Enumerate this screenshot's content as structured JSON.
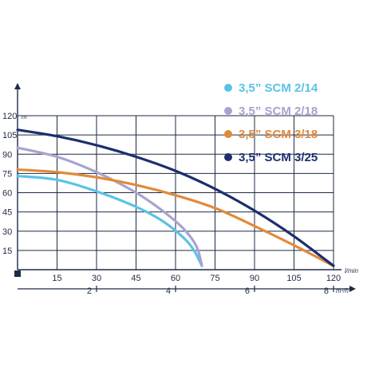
{
  "chart_data": {
    "type": "line",
    "x": {
      "min": 0,
      "max": 120,
      "ticks": [
        15,
        30,
        45,
        60,
        75,
        90,
        105,
        120
      ],
      "unit": "l/min"
    },
    "x2": {
      "min": 0,
      "max": 8,
      "ticks": [
        2,
        4,
        6,
        8
      ],
      "unit": "m³/h"
    },
    "y": {
      "min": 0,
      "max": 120,
      "ticks": [
        15,
        30,
        45,
        60,
        75,
        90,
        105,
        120
      ],
      "unit": "m"
    },
    "grid": true,
    "legend_position": "top-right",
    "series": [
      {
        "name": "3,5” SCM 2/14",
        "color": "#5bc2e7",
        "points": [
          [
            0,
            73
          ],
          [
            15,
            70
          ],
          [
            30,
            61
          ],
          [
            45,
            49
          ],
          [
            55,
            38
          ],
          [
            63,
            25
          ],
          [
            67,
            15
          ],
          [
            70,
            3
          ]
        ]
      },
      {
        "name": "3,5” SCM 2/18",
        "color": "#a8a3cf",
        "points": [
          [
            0,
            95
          ],
          [
            15,
            88
          ],
          [
            30,
            76
          ],
          [
            45,
            60
          ],
          [
            55,
            46
          ],
          [
            63,
            32
          ],
          [
            68,
            18
          ],
          [
            70,
            3
          ]
        ]
      },
      {
        "name": "3,5” SCM 3/18",
        "color": "#e08a3c",
        "points": [
          [
            0,
            78
          ],
          [
            15,
            76
          ],
          [
            30,
            72
          ],
          [
            45,
            66
          ],
          [
            60,
            58
          ],
          [
            75,
            48
          ],
          [
            90,
            34
          ],
          [
            105,
            19
          ],
          [
            120,
            3
          ]
        ]
      },
      {
        "name": "3,5” SCM 3/25",
        "color": "#1b2f6e",
        "points": [
          [
            0,
            109
          ],
          [
            15,
            104
          ],
          [
            30,
            97
          ],
          [
            45,
            88
          ],
          [
            60,
            77
          ],
          [
            75,
            63
          ],
          [
            90,
            46
          ],
          [
            105,
            26
          ],
          [
            120,
            3
          ]
        ]
      }
    ]
  }
}
